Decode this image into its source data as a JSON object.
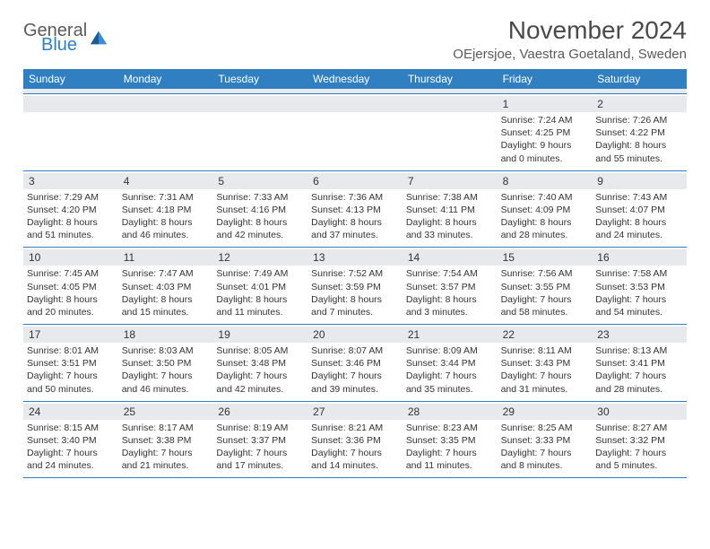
{
  "brand": {
    "line1": "General",
    "line2": "Blue",
    "logo_color": "#2f7fc1",
    "text_color": "#5a5a5a"
  },
  "title": "November 2024",
  "location": "OEjersjoe, Vaestra Goetaland, Sweden",
  "colors": {
    "header_bg": "#2f7fc1",
    "strip_bg": "#e7e9ec",
    "text": "#333333"
  },
  "dow": [
    "Sunday",
    "Monday",
    "Tuesday",
    "Wednesday",
    "Thursday",
    "Friday",
    "Saturday"
  ],
  "weeks": [
    [
      null,
      null,
      null,
      null,
      null,
      {
        "n": "1",
        "sr": "7:24 AM",
        "ss": "4:25 PM",
        "dl1": "9 hours",
        "dl2": "and 0 minutes."
      },
      {
        "n": "2",
        "sr": "7:26 AM",
        "ss": "4:22 PM",
        "dl1": "8 hours",
        "dl2": "and 55 minutes."
      }
    ],
    [
      {
        "n": "3",
        "sr": "7:29 AM",
        "ss": "4:20 PM",
        "dl1": "8 hours",
        "dl2": "and 51 minutes."
      },
      {
        "n": "4",
        "sr": "7:31 AM",
        "ss": "4:18 PM",
        "dl1": "8 hours",
        "dl2": "and 46 minutes."
      },
      {
        "n": "5",
        "sr": "7:33 AM",
        "ss": "4:16 PM",
        "dl1": "8 hours",
        "dl2": "and 42 minutes."
      },
      {
        "n": "6",
        "sr": "7:36 AM",
        "ss": "4:13 PM",
        "dl1": "8 hours",
        "dl2": "and 37 minutes."
      },
      {
        "n": "7",
        "sr": "7:38 AM",
        "ss": "4:11 PM",
        "dl1": "8 hours",
        "dl2": "and 33 minutes."
      },
      {
        "n": "8",
        "sr": "7:40 AM",
        "ss": "4:09 PM",
        "dl1": "8 hours",
        "dl2": "and 28 minutes."
      },
      {
        "n": "9",
        "sr": "7:43 AM",
        "ss": "4:07 PM",
        "dl1": "8 hours",
        "dl2": "and 24 minutes."
      }
    ],
    [
      {
        "n": "10",
        "sr": "7:45 AM",
        "ss": "4:05 PM",
        "dl1": "8 hours",
        "dl2": "and 20 minutes."
      },
      {
        "n": "11",
        "sr": "7:47 AM",
        "ss": "4:03 PM",
        "dl1": "8 hours",
        "dl2": "and 15 minutes."
      },
      {
        "n": "12",
        "sr": "7:49 AM",
        "ss": "4:01 PM",
        "dl1": "8 hours",
        "dl2": "and 11 minutes."
      },
      {
        "n": "13",
        "sr": "7:52 AM",
        "ss": "3:59 PM",
        "dl1": "8 hours",
        "dl2": "and 7 minutes."
      },
      {
        "n": "14",
        "sr": "7:54 AM",
        "ss": "3:57 PM",
        "dl1": "8 hours",
        "dl2": "and 3 minutes."
      },
      {
        "n": "15",
        "sr": "7:56 AM",
        "ss": "3:55 PM",
        "dl1": "7 hours",
        "dl2": "and 58 minutes."
      },
      {
        "n": "16",
        "sr": "7:58 AM",
        "ss": "3:53 PM",
        "dl1": "7 hours",
        "dl2": "and 54 minutes."
      }
    ],
    [
      {
        "n": "17",
        "sr": "8:01 AM",
        "ss": "3:51 PM",
        "dl1": "7 hours",
        "dl2": "and 50 minutes."
      },
      {
        "n": "18",
        "sr": "8:03 AM",
        "ss": "3:50 PM",
        "dl1": "7 hours",
        "dl2": "and 46 minutes."
      },
      {
        "n": "19",
        "sr": "8:05 AM",
        "ss": "3:48 PM",
        "dl1": "7 hours",
        "dl2": "and 42 minutes."
      },
      {
        "n": "20",
        "sr": "8:07 AM",
        "ss": "3:46 PM",
        "dl1": "7 hours",
        "dl2": "and 39 minutes."
      },
      {
        "n": "21",
        "sr": "8:09 AM",
        "ss": "3:44 PM",
        "dl1": "7 hours",
        "dl2": "and 35 minutes."
      },
      {
        "n": "22",
        "sr": "8:11 AM",
        "ss": "3:43 PM",
        "dl1": "7 hours",
        "dl2": "and 31 minutes."
      },
      {
        "n": "23",
        "sr": "8:13 AM",
        "ss": "3:41 PM",
        "dl1": "7 hours",
        "dl2": "and 28 minutes."
      }
    ],
    [
      {
        "n": "24",
        "sr": "8:15 AM",
        "ss": "3:40 PM",
        "dl1": "7 hours",
        "dl2": "and 24 minutes."
      },
      {
        "n": "25",
        "sr": "8:17 AM",
        "ss": "3:38 PM",
        "dl1": "7 hours",
        "dl2": "and 21 minutes."
      },
      {
        "n": "26",
        "sr": "8:19 AM",
        "ss": "3:37 PM",
        "dl1": "7 hours",
        "dl2": "and 17 minutes."
      },
      {
        "n": "27",
        "sr": "8:21 AM",
        "ss": "3:36 PM",
        "dl1": "7 hours",
        "dl2": "and 14 minutes."
      },
      {
        "n": "28",
        "sr": "8:23 AM",
        "ss": "3:35 PM",
        "dl1": "7 hours",
        "dl2": "and 11 minutes."
      },
      {
        "n": "29",
        "sr": "8:25 AM",
        "ss": "3:33 PM",
        "dl1": "7 hours",
        "dl2": "and 8 minutes."
      },
      {
        "n": "30",
        "sr": "8:27 AM",
        "ss": "3:32 PM",
        "dl1": "7 hours",
        "dl2": "and 5 minutes."
      }
    ]
  ],
  "labels": {
    "sunrise": "Sunrise:",
    "sunset": "Sunset:",
    "daylight": "Daylight:"
  }
}
